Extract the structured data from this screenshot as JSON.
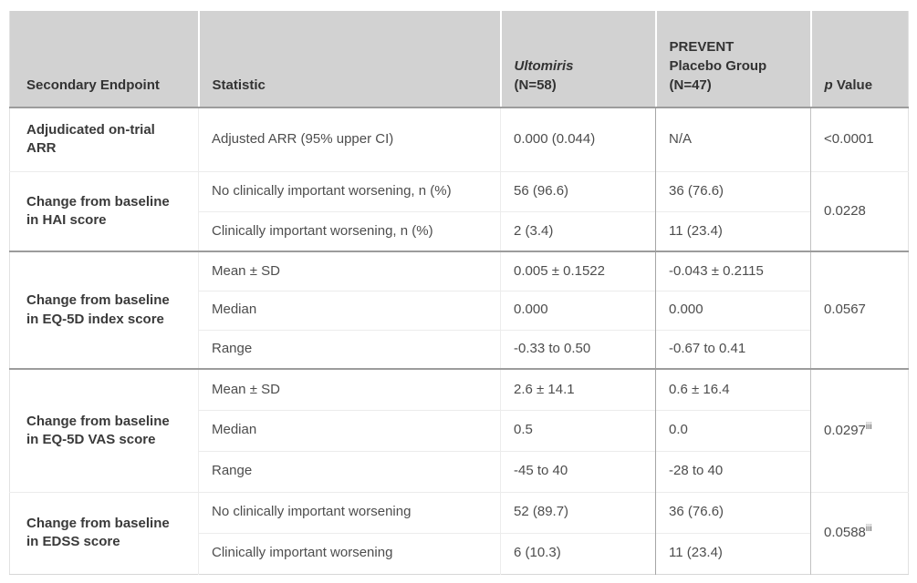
{
  "header": {
    "col1": "Secondary Endpoint",
    "col2": "Statistic",
    "col3": {
      "name": "Ultomiris",
      "n": "(N=58)"
    },
    "col4": {
      "line1": "PREVENT",
      "line2": "Placebo Group",
      "n": "(N=47)"
    },
    "col5": {
      "p": "p",
      "rest": " Value"
    }
  },
  "groups": [
    {
      "endpoint": "Adjudicated on-trial ARR",
      "p": {
        "text": "<0.0001",
        "sup": ""
      },
      "rows": [
        {
          "statistic": "Adjusted ARR (95% upper CI)",
          "ultomiris": "0.000 (0.044)",
          "placebo": "N/A"
        }
      ]
    },
    {
      "endpoint": "Change from baseline in HAI score",
      "p": {
        "text": "0.0228",
        "sup": ""
      },
      "rows": [
        {
          "statistic": "No clinically important worsening, n (%)",
          "ultomiris": "56 (96.6)",
          "placebo": "36 (76.6)"
        },
        {
          "statistic": "Clinically important worsening, n (%)",
          "ultomiris": "2 (3.4)",
          "placebo": "11 (23.4)"
        }
      ]
    },
    {
      "endpoint": "Change from baseline in EQ-5D index score",
      "p": {
        "text": "0.0567",
        "sup": ""
      },
      "rows": [
        {
          "statistic": "Mean ± SD",
          "ultomiris": "0.005 ± 0.1522",
          "placebo": "-0.043 ± 0.2115"
        },
        {
          "statistic": "Median",
          "ultomiris": "0.000",
          "placebo": "0.000"
        },
        {
          "statistic": "Range",
          "ultomiris": "-0.33 to 0.50",
          "placebo": "-0.67 to 0.41"
        }
      ]
    },
    {
      "endpoint": "Change from baseline in EQ-5D VAS score",
      "p": {
        "text": "0.0297",
        "sup": "iii"
      },
      "rows": [
        {
          "statistic": "Mean ± SD",
          "ultomiris": "2.6 ± 14.1",
          "placebo": "0.6 ± 16.4"
        },
        {
          "statistic": "Median",
          "ultomiris": "0.5",
          "placebo": "0.0"
        },
        {
          "statistic": "Range",
          "ultomiris": "-45 to 40",
          "placebo": "-28 to 40"
        }
      ]
    },
    {
      "endpoint": "Change from baseline in EDSS score",
      "p": {
        "text": "0.0588",
        "sup": "iii"
      },
      "rows": [
        {
          "statistic": "No clinically important worsening",
          "ultomiris": "52 (89.7)",
          "placebo": "36 (76.6)"
        },
        {
          "statistic": "Clinically important worsening",
          "ultomiris": "6 (10.3)",
          "placebo": "11 (23.4)"
        }
      ]
    }
  ],
  "colors": {
    "header_bg": "#d2d2d2",
    "header_text": "#333333",
    "body_text": "#4d4d4d",
    "endpoint_text": "#3a3a3a",
    "dark_border": "#9c9c9c",
    "light_border": "#ececec"
  }
}
